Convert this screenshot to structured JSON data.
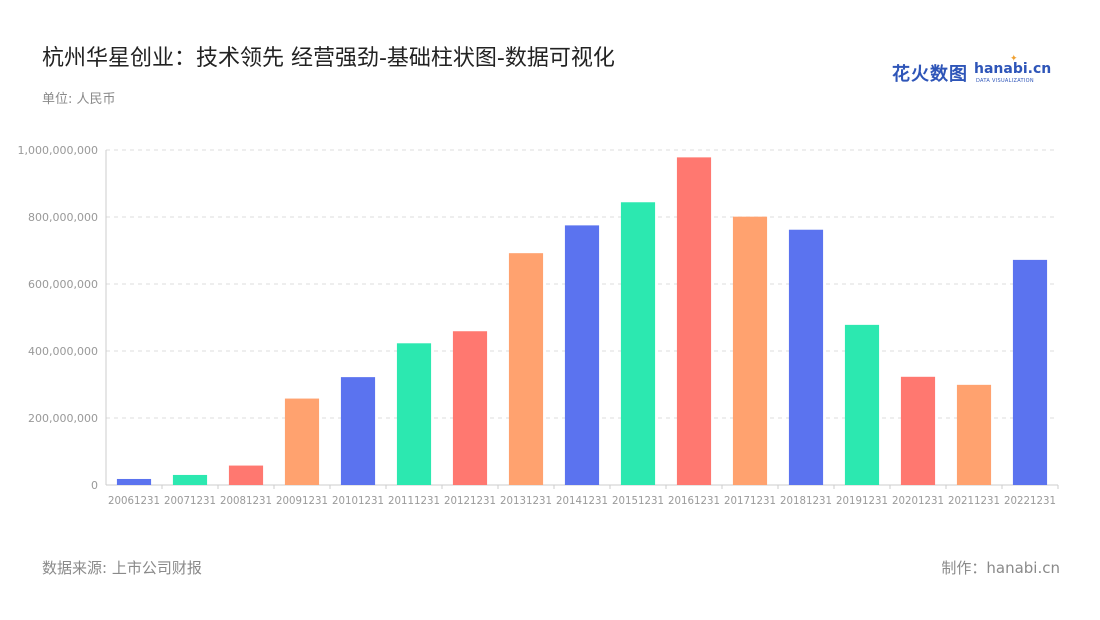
{
  "header": {
    "title": "杭州华星创业：技术领先 经营强劲-基础柱状图-数据可视化",
    "unit": "单位: 人民币"
  },
  "logo": {
    "cn": "花火数图",
    "en": "hanabi.cn",
    "sub": "DATA VISUALIZATION"
  },
  "footer": {
    "source": "数据来源: 上市公司财报",
    "maker": "制作：hanabi.cn"
  },
  "colors": [
    "#5b73ef",
    "#2ce8b0",
    "#ff7870",
    "#ffa26f"
  ],
  "chart_data": {
    "type": "bar",
    "categories": [
      "20061231",
      "20071231",
      "20081231",
      "20091231",
      "20101231",
      "20111231",
      "20121231",
      "20131231",
      "20141231",
      "20151231",
      "20161231",
      "20171231",
      "20181231",
      "20191231",
      "20201231",
      "20211231",
      "20221231"
    ],
    "values": [
      18000000,
      30000000,
      58000000,
      258000000,
      322000000,
      423000000,
      459000000,
      692000000,
      775000000,
      844000000,
      978000000,
      801000000,
      762000000,
      478000000,
      323000000,
      299000000,
      672000000
    ],
    "bar_colors": [
      "#5b73ef",
      "#2ce8b0",
      "#ff7870",
      "#ffa26f",
      "#5b73ef",
      "#2ce8b0",
      "#ff7870",
      "#ffa26f",
      "#5b73ef",
      "#2ce8b0",
      "#ff7870",
      "#ffa26f",
      "#5b73ef",
      "#2ce8b0",
      "#ff7870",
      "#ffa26f",
      "#5b73ef"
    ],
    "yticks": [
      "0",
      "200,000,000",
      "400,000,000",
      "600,000,000",
      "800,000,000",
      "1,000,000,000"
    ],
    "ylim": [
      0,
      1000000000
    ],
    "grid": true
  }
}
